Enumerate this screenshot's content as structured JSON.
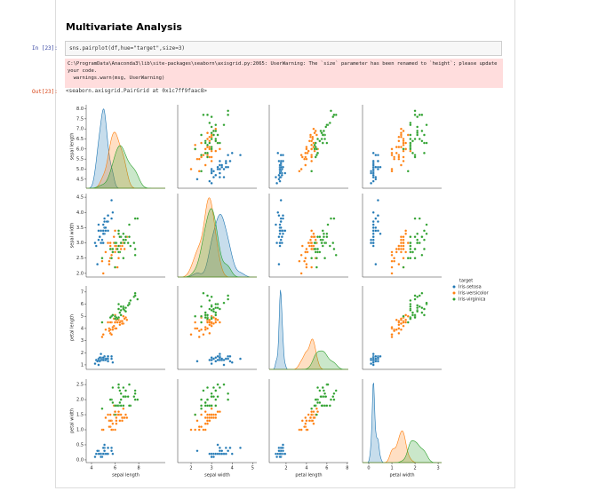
{
  "header": {
    "title": "Multivariate Analysis"
  },
  "cells": {
    "in_prompt": "In [23]:",
    "code": "sns.pairplot(df,hue=\"target\",size=3)",
    "warning": "C:\\ProgramData\\Anaconda3\\lib\\site-packages\\seaborn\\axisgrid.py:2065: UserWarning: The `size` parameter has been renamed to `height`; please update your code.\n  warnings.warn(msg, UserWarning)",
    "out_prompt": "Out[23]:",
    "output": "<seaborn.axisgrid.PairGrid at 0x1c7ff9faac8>"
  },
  "chart_data": {
    "type": "pairplot",
    "legend_title": "target",
    "variables": [
      {
        "name": "sepal length",
        "xlim": [
          3.55,
          10.25
        ],
        "ylim": [
          4.05,
          8.2
        ],
        "xticks": [
          4,
          6,
          8
        ],
        "yticks": [
          4.5,
          {
            "value": 5,
            "label": "5.0"
          },
          5.5,
          {
            "value": 6,
            "label": "6.0"
          },
          6.5,
          {
            "value": 7,
            "label": "7.0"
          },
          7.5,
          {
            "value": 8,
            "label": "8.0"
          }
        ]
      },
      {
        "name": "sepal width",
        "xlim": [
          1.35,
          5.2
        ],
        "ylim": [
          1.88,
          4.62
        ],
        "xticks": [
          2,
          3,
          4,
          5
        ],
        "yticks": [
          {
            "value": 2,
            "label": "2.0"
          },
          2.5,
          {
            "value": 3,
            "label": "3.0"
          },
          3.5,
          {
            "value": 4,
            "label": "4.0"
          },
          4.5
        ]
      },
      {
        "name": "petal length",
        "xlim": [
          0.35,
          8.1
        ],
        "ylim": [
          0.63,
          7.5
        ],
        "xticks": [
          2,
          4,
          6,
          8
        ],
        "yticks": [
          1,
          2,
          3,
          4,
          5,
          6,
          7
        ]
      },
      {
        "name": "petal width",
        "xlim": [
          -0.27,
          3.15
        ],
        "ylim": [
          -0.09,
          2.68
        ],
        "xticks": [
          0,
          1,
          2,
          3
        ],
        "yticks": [
          {
            "value": 0,
            "label": "0.0"
          },
          0.5,
          {
            "value": 1,
            "label": "1.0"
          },
          1.5,
          {
            "value": 2,
            "label": "2.0"
          },
          2.5
        ]
      }
    ],
    "series": [
      {
        "name": "Iris-setosa",
        "color": "#1f77b4",
        "values": [
          [
            5.1,
            3.5,
            1.4,
            0.2
          ],
          [
            4.9,
            3.0,
            1.4,
            0.2
          ],
          [
            4.7,
            3.2,
            1.3,
            0.2
          ],
          [
            4.6,
            3.1,
            1.5,
            0.2
          ],
          [
            5.0,
            3.6,
            1.4,
            0.2
          ],
          [
            5.4,
            3.9,
            1.7,
            0.4
          ],
          [
            4.6,
            3.4,
            1.4,
            0.3
          ],
          [
            5.0,
            3.4,
            1.5,
            0.2
          ],
          [
            4.4,
            2.9,
            1.4,
            0.2
          ],
          [
            4.9,
            3.1,
            1.5,
            0.1
          ],
          [
            5.4,
            3.7,
            1.5,
            0.2
          ],
          [
            4.8,
            3.4,
            1.6,
            0.2
          ],
          [
            4.8,
            3.0,
            1.4,
            0.1
          ],
          [
            4.3,
            3.0,
            1.1,
            0.1
          ],
          [
            5.8,
            4.0,
            1.2,
            0.2
          ],
          [
            5.7,
            4.4,
            1.5,
            0.4
          ],
          [
            5.4,
            3.9,
            1.3,
            0.4
          ],
          [
            5.1,
            3.5,
            1.4,
            0.3
          ],
          [
            5.7,
            3.8,
            1.7,
            0.3
          ],
          [
            5.1,
            3.8,
            1.5,
            0.3
          ],
          [
            5.4,
            3.4,
            1.7,
            0.2
          ],
          [
            5.1,
            3.7,
            1.5,
            0.4
          ],
          [
            4.6,
            3.6,
            1.0,
            0.2
          ],
          [
            5.1,
            3.3,
            1.7,
            0.5
          ],
          [
            4.8,
            3.4,
            1.9,
            0.2
          ],
          [
            5.0,
            3.0,
            1.6,
            0.2
          ],
          [
            5.0,
            3.4,
            1.6,
            0.4
          ],
          [
            5.2,
            3.5,
            1.5,
            0.2
          ],
          [
            5.2,
            3.4,
            1.4,
            0.2
          ],
          [
            4.7,
            3.2,
            1.6,
            0.2
          ],
          [
            4.5,
            2.3,
            1.3,
            0.3
          ],
          [
            5.3,
            3.7,
            1.5,
            0.2
          ],
          [
            5.0,
            3.3,
            1.4,
            0.2
          ]
        ]
      },
      {
        "name": "Iris-versicolor",
        "color": "#ff7f0e",
        "values": [
          [
            7.0,
            3.2,
            4.7,
            1.4
          ],
          [
            6.4,
            3.2,
            4.5,
            1.5
          ],
          [
            6.9,
            3.1,
            4.9,
            1.5
          ],
          [
            5.5,
            2.3,
            4.0,
            1.3
          ],
          [
            6.5,
            2.8,
            4.6,
            1.5
          ],
          [
            5.7,
            2.8,
            4.5,
            1.3
          ],
          [
            6.3,
            3.3,
            4.7,
            1.6
          ],
          [
            4.9,
            2.4,
            3.3,
            1.0
          ],
          [
            6.6,
            2.9,
            4.6,
            1.3
          ],
          [
            5.2,
            2.7,
            3.9,
            1.4
          ],
          [
            5.0,
            2.0,
            3.5,
            1.0
          ],
          [
            5.9,
            3.0,
            4.2,
            1.5
          ],
          [
            6.0,
            2.2,
            4.0,
            1.0
          ],
          [
            6.1,
            2.9,
            4.7,
            1.4
          ],
          [
            5.6,
            2.9,
            3.6,
            1.3
          ],
          [
            6.7,
            3.1,
            4.4,
            1.4
          ],
          [
            5.6,
            3.0,
            4.5,
            1.5
          ],
          [
            5.8,
            2.7,
            4.1,
            1.0
          ],
          [
            6.2,
            2.2,
            4.5,
            1.5
          ],
          [
            5.6,
            2.5,
            3.9,
            1.1
          ],
          [
            5.9,
            3.2,
            4.8,
            1.8
          ],
          [
            6.1,
            2.8,
            4.0,
            1.3
          ],
          [
            6.3,
            2.5,
            4.9,
            1.5
          ],
          [
            6.1,
            2.8,
            4.7,
            1.2
          ],
          [
            6.4,
            2.9,
            4.3,
            1.3
          ],
          [
            6.6,
            3.0,
            4.4,
            1.4
          ],
          [
            6.8,
            2.8,
            4.8,
            1.4
          ],
          [
            6.7,
            3.0,
            5.0,
            1.7
          ],
          [
            6.0,
            2.9,
            4.5,
            1.5
          ],
          [
            5.7,
            2.6,
            3.5,
            1.0
          ],
          [
            5.5,
            2.4,
            3.8,
            1.1
          ],
          [
            5.8,
            2.7,
            3.9,
            1.2
          ],
          [
            6.0,
            2.7,
            5.1,
            1.6
          ],
          [
            5.4,
            3.0,
            4.5,
            1.5
          ],
          [
            6.0,
            3.4,
            4.5,
            1.6
          ]
        ]
      },
      {
        "name": "Iris-virginica",
        "color": "#2ca02c",
        "values": [
          [
            6.3,
            3.3,
            6.0,
            2.5
          ],
          [
            5.8,
            2.7,
            5.1,
            1.9
          ],
          [
            7.1,
            3.0,
            5.9,
            2.1
          ],
          [
            6.3,
            2.9,
            5.6,
            1.8
          ],
          [
            6.5,
            3.0,
            5.8,
            2.2
          ],
          [
            7.6,
            3.0,
            6.6,
            2.1
          ],
          [
            4.9,
            2.5,
            4.5,
            1.7
          ],
          [
            7.3,
            2.9,
            6.3,
            1.8
          ],
          [
            6.7,
            2.5,
            5.8,
            1.8
          ],
          [
            7.2,
            3.6,
            6.1,
            2.5
          ],
          [
            6.5,
            3.2,
            5.1,
            2.0
          ],
          [
            6.4,
            2.7,
            5.3,
            1.9
          ],
          [
            6.8,
            3.0,
            5.5,
            2.1
          ],
          [
            5.7,
            2.5,
            5.0,
            2.0
          ],
          [
            5.8,
            2.8,
            5.1,
            2.4
          ],
          [
            6.4,
            3.2,
            5.3,
            2.3
          ],
          [
            6.5,
            3.0,
            5.5,
            1.8
          ],
          [
            7.7,
            3.8,
            6.7,
            2.2
          ],
          [
            7.7,
            2.6,
            6.9,
            2.3
          ],
          [
            6.0,
            2.2,
            5.0,
            1.5
          ],
          [
            6.9,
            3.2,
            5.7,
            2.3
          ],
          [
            5.6,
            2.8,
            4.9,
            2.0
          ],
          [
            7.7,
            2.8,
            6.7,
            2.0
          ],
          [
            6.3,
            2.7,
            4.9,
            1.8
          ],
          [
            6.7,
            3.3,
            5.7,
            2.1
          ],
          [
            7.2,
            3.2,
            6.0,
            1.8
          ],
          [
            6.2,
            2.8,
            4.8,
            1.8
          ],
          [
            6.1,
            3.0,
            4.9,
            1.8
          ],
          [
            7.9,
            3.8,
            6.4,
            2.0
          ],
          [
            6.3,
            3.4,
            5.6,
            2.4
          ],
          [
            6.0,
            3.0,
            4.8,
            1.8
          ],
          [
            6.9,
            3.1,
            5.4,
            2.1
          ],
          [
            6.7,
            3.1,
            5.6,
            2.4
          ]
        ]
      }
    ]
  }
}
